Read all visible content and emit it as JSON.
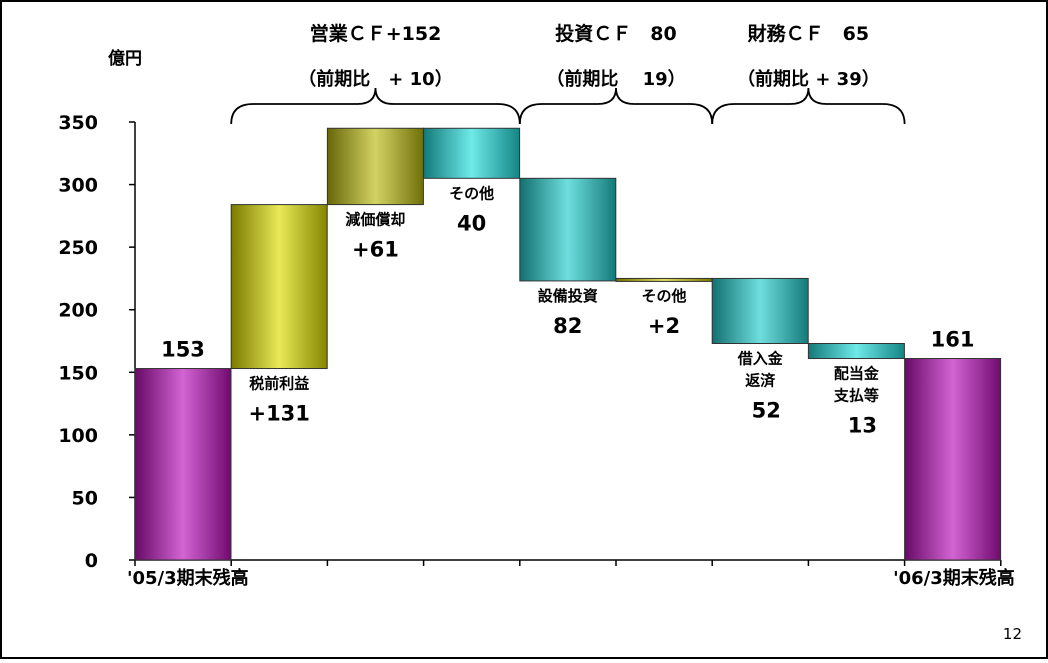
{
  "slide": {
    "page_number": "12"
  },
  "chart_data": {
    "type": "bar",
    "subtype": "waterfall",
    "ylabel": "億円",
    "ylim": [
      0,
      350
    ],
    "yticks": [
      "0",
      "50",
      "100",
      "150",
      "200",
      "250",
      "300",
      "350"
    ],
    "grid": false,
    "bars": [
      {
        "base": 0,
        "top": 153,
        "color": "#bb11bb",
        "label_lines": [],
        "value_label": "153"
      },
      {
        "base": 153,
        "top": 284,
        "color": "#dddd00",
        "label_lines": [
          "税前利益"
        ],
        "value_label": "+131"
      },
      {
        "base": 284,
        "top": 345,
        "color": "#bbbb11",
        "label_lines": [
          "減価償却"
        ],
        "value_label": "+61"
      },
      {
        "base": 305,
        "top": 345,
        "color": "#22dddd",
        "label_lines": [
          "その他"
        ],
        "value_label": "40"
      },
      {
        "base": 223,
        "top": 305,
        "color": "#22cccc",
        "label_lines": [
          "設備投資"
        ],
        "value_label": "82"
      },
      {
        "base": 223,
        "top": 225,
        "color": "#cccc00",
        "label_lines": [
          "その他"
        ],
        "value_label": "+2"
      },
      {
        "base": 173,
        "top": 225,
        "color": "#22cccc",
        "label_lines": [
          "借入金",
          "返済"
        ],
        "value_label": "52"
      },
      {
        "base": 161,
        "top": 173,
        "color": "#22dddd",
        "label_lines": [
          "配当金",
          "支払等"
        ],
        "value_label": "13"
      },
      {
        "base": 0,
        "top": 161,
        "color": "#bb11bb",
        "label_lines": [],
        "value_label": "161"
      }
    ],
    "x_end_labels": [
      "'05/3期末残高",
      "'06/3期末残高"
    ],
    "groups": [
      {
        "label": "営業ＣＦ+152",
        "sublabel": "（前期比　+ 10）"
      },
      {
        "label": "投資ＣＦ　80",
        "sublabel": "（前期比　 19）"
      },
      {
        "label": "財務ＣＦ　65",
        "sublabel": "（前期比 + 39）"
      }
    ]
  }
}
